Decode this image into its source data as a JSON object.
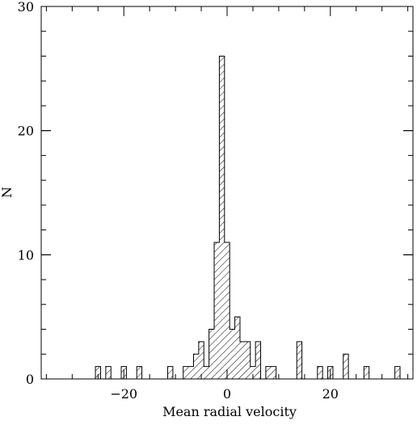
{
  "chart_data": {
    "type": "bar",
    "title": "",
    "xlabel": "Mean radial velocity",
    "ylabel": "N",
    "xlim": [
      -36,
      36
    ],
    "ylim": [
      0,
      30
    ],
    "bin_width": 1,
    "grid": false,
    "fill": "hatched",
    "x_ticks": [
      -20,
      0,
      20
    ],
    "y_ticks": [
      0,
      10,
      20,
      30
    ],
    "x_tick_labels": [
      "−20",
      "0",
      "20"
    ],
    "y_tick_labels": [
      "0",
      "10",
      "20",
      "30"
    ],
    "bins": [
      {
        "x": -25,
        "value": 1
      },
      {
        "x": -23,
        "value": 1
      },
      {
        "x": -20,
        "value": 1
      },
      {
        "x": -17,
        "value": 1
      },
      {
        "x": -11,
        "value": 1
      },
      {
        "x": -8,
        "value": 1
      },
      {
        "x": -7,
        "value": 1
      },
      {
        "x": -6,
        "value": 2
      },
      {
        "x": -5,
        "value": 3
      },
      {
        "x": -4,
        "value": 1
      },
      {
        "x": -3,
        "value": 4
      },
      {
        "x": -2,
        "value": 11
      },
      {
        "x": -1,
        "value": 26
      },
      {
        "x": 0,
        "value": 11
      },
      {
        "x": 1,
        "value": 4
      },
      {
        "x": 2,
        "value": 5
      },
      {
        "x": 3,
        "value": 3
      },
      {
        "x": 4,
        "value": 3
      },
      {
        "x": 5,
        "value": 1
      },
      {
        "x": 6,
        "value": 3
      },
      {
        "x": 8,
        "value": 1
      },
      {
        "x": 9,
        "value": 1
      },
      {
        "x": 14,
        "value": 3
      },
      {
        "x": 18,
        "value": 1
      },
      {
        "x": 20,
        "value": 1
      },
      {
        "x": 23,
        "value": 2
      },
      {
        "x": 27,
        "value": 1
      },
      {
        "x": 33,
        "value": 1
      }
    ]
  }
}
